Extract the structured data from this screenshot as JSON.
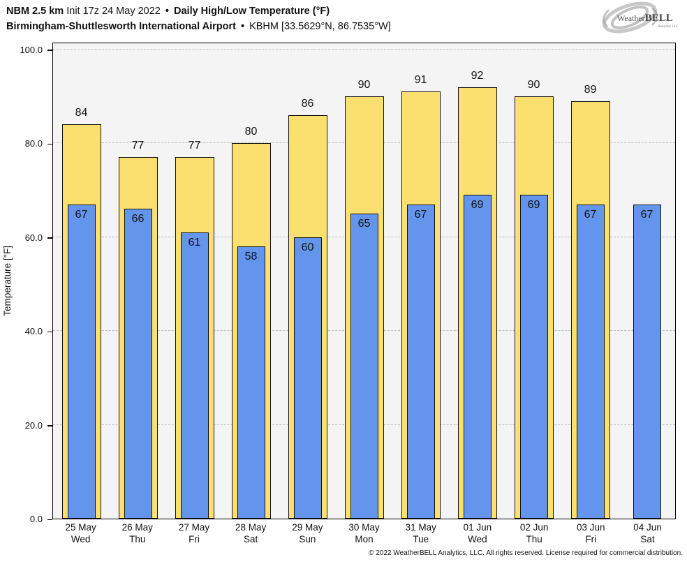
{
  "header": {
    "model": "NBM 2.5 km",
    "init": "Init 17z 24 May 2022",
    "bullet": "•",
    "product": "Daily High/Low Temperature (°F)",
    "station": "Birmingham-Shuttlesworth International Airport",
    "station_meta": "KBHM [33.5629°N, 86.7535°W]"
  },
  "logo": {
    "brand_prefix": "Weather",
    "brand_suffix": "BELL",
    "subtitle": "Analytics LLC"
  },
  "chart_data": {
    "type": "bar",
    "title": "NBM 2.5 km Daily High/Low Temperature (°F) — KBHM",
    "ylabel": "Temperature [°F]",
    "ylim": [
      0,
      101.3
    ],
    "yticks": [
      0,
      20,
      40,
      60,
      80,
      100
    ],
    "ytick_labels": [
      "0.0",
      "20.0",
      "40.0",
      "60.0",
      "80.0",
      "100.0"
    ],
    "grid": "horizontal dashed at major ticks",
    "legend": "none",
    "categories": [
      "25 May",
      "26 May",
      "27 May",
      "28 May",
      "29 May",
      "30 May",
      "31 May",
      "01 Jun",
      "02 Jun",
      "03 Jun",
      "04 Jun"
    ],
    "weekdays": [
      "Wed",
      "Thu",
      "Fri",
      "Sat",
      "Sun",
      "Mon",
      "Tue",
      "Wed",
      "Thu",
      "Fri",
      "Sat"
    ],
    "series": [
      {
        "name": "Daily High",
        "color": "#FBE070",
        "values": [
          84,
          77,
          77,
          80,
          86,
          90,
          91,
          92,
          90,
          89,
          null
        ]
      },
      {
        "name": "Daily Low",
        "color": "#6495ED",
        "values": [
          67,
          66,
          61,
          58,
          60,
          65,
          67,
          69,
          69,
          67,
          67
        ]
      }
    ]
  },
  "footer": {
    "copyright": "© 2022 WeatherBELL Analytics, LLC. All rights reserved. License required for commercial distribution."
  },
  "colors": {
    "plot_background": "#F4F4F5",
    "gridline": "#BDBDBD",
    "bar_outline": "#111111",
    "high_bar": "#FBE070",
    "low_bar": "#6495ED"
  }
}
